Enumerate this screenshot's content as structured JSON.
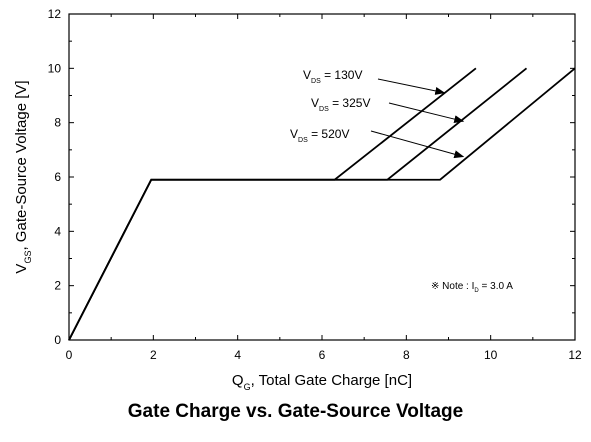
{
  "chart_data": {
    "type": "line",
    "title": "Gate Charge vs. Gate-Source Voltage",
    "xlabel": {
      "main": "Q",
      "sub": "G",
      "rest": ", Total Gate Charge [nC]"
    },
    "ylabel": {
      "main": "V",
      "sub": "GS",
      "rest": ", Gate-Source Voltage [V]"
    },
    "xlim": [
      0,
      12
    ],
    "ylim": [
      0,
      12
    ],
    "xticks": [
      0,
      2,
      4,
      6,
      8,
      10,
      12
    ],
    "yticks": [
      0,
      2,
      4,
      6,
      8,
      10,
      12
    ],
    "xtick_labels": [
      "0",
      "2",
      "4",
      "6",
      "8",
      "10",
      "12"
    ],
    "ytick_labels": [
      "0",
      "2",
      "4",
      "6",
      "8",
      "10",
      "12"
    ],
    "grid": false,
    "legend": false,
    "series": [
      {
        "name": "VDS = 130V",
        "x": [
          0,
          1.95,
          6.3,
          9.65
        ],
        "y": [
          0,
          5.9,
          5.9,
          10.0
        ]
      },
      {
        "name": "VDS = 325V",
        "x": [
          0,
          1.95,
          7.55,
          10.85
        ],
        "y": [
          0,
          5.9,
          5.9,
          10.0
        ]
      },
      {
        "name": "VDS = 520V",
        "x": [
          0,
          1.95,
          8.8,
          12.0
        ],
        "y": [
          0,
          5.9,
          5.9,
          10.0
        ]
      }
    ],
    "annotations": [
      {
        "id": "v130",
        "main": "V",
        "sub": "DS",
        "rest": " = 130V",
        "arrow_to": [
          8.9,
          9.1
        ]
      },
      {
        "id": "v325",
        "main": "V",
        "sub": "DS",
        "rest": " = 325V",
        "arrow_to": [
          9.35,
          8.05
        ]
      },
      {
        "id": "v520",
        "main": "V",
        "sub": "DS",
        "rest": " = 520V",
        "arrow_to": [
          9.35,
          6.75
        ]
      },
      {
        "id": "note",
        "prefix": "※ Note : I",
        "sub": "D",
        "rest": " = 3.0 A"
      }
    ]
  }
}
